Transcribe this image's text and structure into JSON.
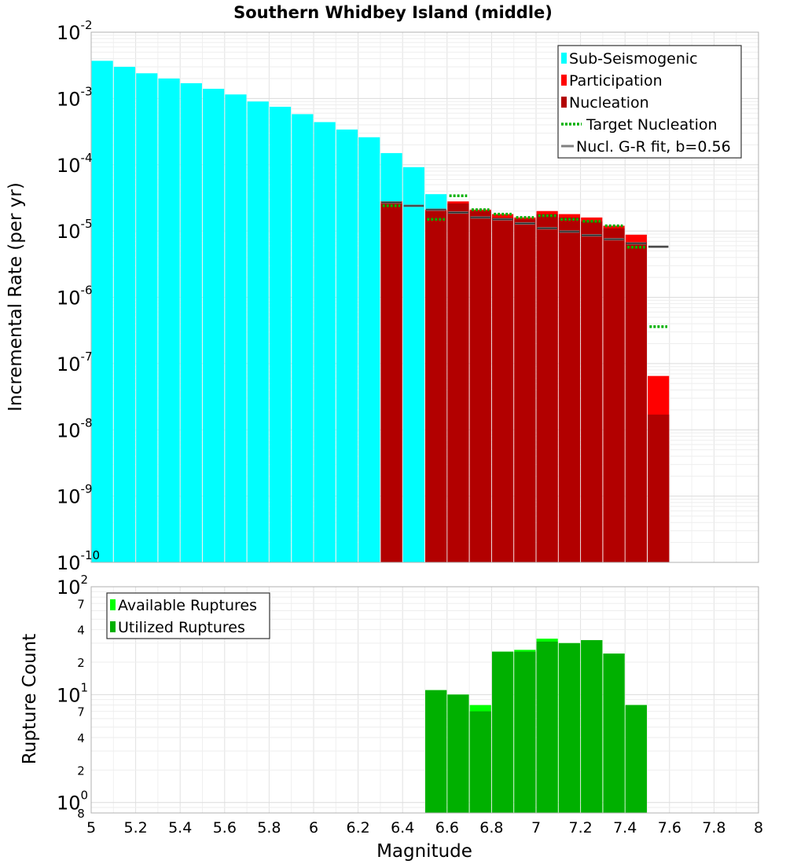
{
  "chart_data": [
    {
      "type": "bar",
      "title": "Southern Whidbey Island (middle)",
      "xlabel": "Magnitude",
      "ylabel": "Incremental Rate (per yr)",
      "yscale": "log",
      "xlim": [
        5,
        8
      ],
      "ylim": [
        1e-10,
        0.01
      ],
      "x_ticks": [
        "5",
        "5.2",
        "5.4",
        "5.6",
        "5.8",
        "6",
        "6.2",
        "6.4",
        "6.6",
        "6.8",
        "7",
        "7.2",
        "7.4",
        "7.6",
        "7.8",
        "8"
      ],
      "y_ticks": [
        {
          "base": "10",
          "exp": "-2",
          "value": 0.01
        },
        {
          "base": "10",
          "exp": "-3",
          "value": 0.001
        },
        {
          "base": "10",
          "exp": "-4",
          "value": 0.0001
        },
        {
          "base": "10",
          "exp": "-5",
          "value": 1e-05
        },
        {
          "base": "10",
          "exp": "-6",
          "value": 1e-06
        },
        {
          "base": "10",
          "exp": "-7",
          "value": 1e-07
        },
        {
          "base": "10",
          "exp": "-8",
          "value": 1e-08
        },
        {
          "base": "10",
          "exp": "-9",
          "value": 1e-09
        },
        {
          "base": "10",
          "exp": "-10",
          "value": 1e-10
        }
      ],
      "grid": true,
      "legend_position": "top-right",
      "legend": [
        {
          "label": "Sub-Seismogenic",
          "color": "#00ffff",
          "style": "box"
        },
        {
          "label": "Participation",
          "color": "#ff0000",
          "style": "box"
        },
        {
          "label": "Nucleation",
          "color": "#b20000",
          "style": "box"
        },
        {
          "label": "Target Nucleation",
          "color": "#00b000",
          "style": "dotted-line"
        },
        {
          "label": "Nucl. G-R fit, b=0.56",
          "color": "#808080",
          "style": "line"
        }
      ],
      "series": [
        {
          "name": "Sub-Seismogenic",
          "color": "#00ffff",
          "x": [
            5.05,
            5.15,
            5.25,
            5.35,
            5.45,
            5.55,
            5.65,
            5.75,
            5.85,
            5.95,
            6.05,
            6.15,
            6.25,
            6.35,
            6.45,
            6.55
          ],
          "values": [
            0.0037,
            0.003,
            0.0024,
            0.002,
            0.0017,
            0.0014,
            0.00115,
            0.0009,
            0.00075,
            0.00058,
            0.00044,
            0.00034,
            0.00026,
            0.00015,
            9.2e-05,
            3.6e-05
          ]
        },
        {
          "name": "Participation",
          "color": "#ff0000",
          "x": [
            6.35,
            6.55,
            6.65,
            6.75,
            6.85,
            6.95,
            7.05,
            7.15,
            7.25,
            7.35,
            7.45,
            7.55
          ],
          "values": [
            2.8e-05,
            2.1e-05,
            2.8e-05,
            2.1e-05,
            1.8e-05,
            1.6e-05,
            2e-05,
            1.8e-05,
            1.6e-05,
            1.2e-05,
            8.8e-06,
            6.5e-08
          ]
        },
        {
          "name": "Nucleation",
          "color": "#b20000",
          "x": [
            6.35,
            6.55,
            6.65,
            6.75,
            6.85,
            6.95,
            7.05,
            7.15,
            7.25,
            7.35,
            7.45,
            7.55
          ],
          "values": [
            2.6e-05,
            2e-05,
            2.6e-05,
            2e-05,
            1.6e-05,
            1.5e-05,
            1.8e-05,
            1.6e-05,
            1.4e-05,
            1.1e-05,
            6.8e-06,
            1.7e-08
          ]
        },
        {
          "name": "Target Nucleation",
          "color": "#00b000",
          "x": [
            6.35,
            6.55,
            6.65,
            6.75,
            6.85,
            6.95,
            7.05,
            7.15,
            7.25,
            7.35,
            7.45,
            7.55
          ],
          "values": [
            2.4e-05,
            1.5e-05,
            3.4e-05,
            2.1e-05,
            1.8e-05,
            1.6e-05,
            1.7e-05,
            1.5e-05,
            1.4e-05,
            1.2e-05,
            5.7e-06,
            3.6e-07
          ]
        },
        {
          "name": "Nucl. G-R fit, b=0.56",
          "color": "#808080",
          "x": [
            6.35,
            6.45,
            6.55,
            6.65,
            6.75,
            6.85,
            6.95,
            7.05,
            7.15,
            7.25,
            7.35,
            7.45,
            7.55
          ],
          "values": [
            2.7e-05,
            2.4e-05,
            2.1e-05,
            1.9e-05,
            1.6e-05,
            1.5e-05,
            1.3e-05,
            1.1e-05,
            9.8e-06,
            8.6e-06,
            7.5e-06,
            6.5e-06,
            5.8e-06
          ]
        }
      ]
    },
    {
      "type": "bar",
      "xlabel": "Magnitude",
      "ylabel": "Rupture Count",
      "yscale": "log",
      "xlim": [
        5,
        8
      ],
      "ylim": [
        0.8,
        100
      ],
      "y_major_ticks": [
        {
          "base": "10",
          "exp": "2",
          "value": 100
        },
        {
          "base": "10",
          "exp": "1",
          "value": 10
        },
        {
          "base": "10",
          "exp": "0",
          "value": 1
        }
      ],
      "y_minor_ticks": [
        {
          "label": "7",
          "value": 70
        },
        {
          "label": "4",
          "value": 40
        },
        {
          "label": "2",
          "value": 20
        },
        {
          "label": "7",
          "value": 7
        },
        {
          "label": "4",
          "value": 4
        },
        {
          "label": "2",
          "value": 2
        },
        {
          "label": "8",
          "value": 0.8
        }
      ],
      "grid": true,
      "legend_position": "top-left",
      "legend": [
        {
          "label": "Available Ruptures",
          "color": "#00ff00"
        },
        {
          "label": "Utilized Ruptures",
          "color": "#00b000"
        }
      ],
      "series": [
        {
          "name": "Available Ruptures",
          "color": "#00ff00",
          "x": [
            6.55,
            6.65,
            6.75,
            6.85,
            6.95,
            7.05,
            7.15,
            7.25,
            7.35,
            7.45
          ],
          "values": [
            11,
            10,
            8,
            25,
            26,
            33,
            30,
            32,
            24,
            8
          ]
        },
        {
          "name": "Utilized Ruptures",
          "color": "#00b000",
          "x": [
            6.55,
            6.65,
            6.75,
            6.85,
            6.95,
            7.05,
            7.15,
            7.25,
            7.35,
            7.45
          ],
          "values": [
            11,
            10,
            7,
            25,
            25,
            31,
            30,
            32,
            24,
            8
          ]
        }
      ]
    }
  ]
}
